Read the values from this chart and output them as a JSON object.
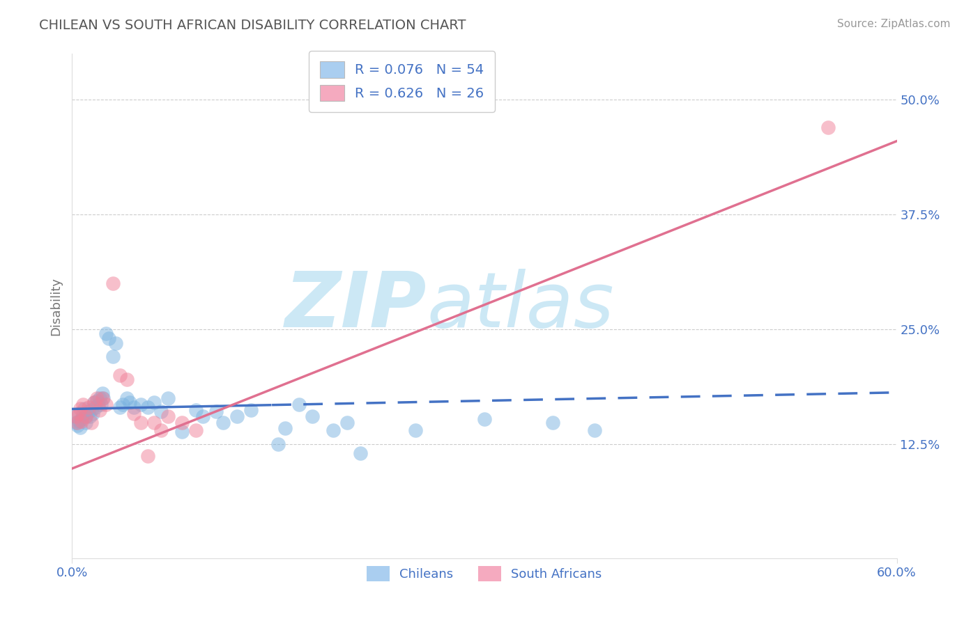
{
  "title": "CHILEAN VS SOUTH AFRICAN DISABILITY CORRELATION CHART",
  "source_text": "Source: ZipAtlas.com",
  "ylabel": "Disability",
  "x_min": 0.0,
  "x_max": 0.6,
  "y_min": 0.0,
  "y_max": 0.55,
  "x_tick_labels": [
    "0.0%",
    "60.0%"
  ],
  "right_y_ticks": [
    0.125,
    0.25,
    0.375,
    0.5
  ],
  "right_y_tick_labels": [
    "12.5%",
    "25.0%",
    "37.5%",
    "50.0%"
  ],
  "legend_entries": [
    {
      "label": "R = 0.076   N = 54",
      "color": "#aacef0"
    },
    {
      "label": "R = 0.626   N = 26",
      "color": "#f5aabf"
    }
  ],
  "legend_bottom": [
    "Chileans",
    "South Africans"
  ],
  "legend_bottom_colors": [
    "#aacef0",
    "#f5aabf"
  ],
  "chilean_color": "#7ab3e0",
  "sa_color": "#f08098",
  "chilean_line_color": "#4472c4",
  "sa_line_color": "#e07090",
  "watermark_color": "#cce8f5",
  "title_color": "#555555",
  "axis_label_color": "#777777",
  "tick_color": "#4472c4",
  "grid_color": "#cccccc",
  "chilean_scatter_x": [
    0.002,
    0.003,
    0.004,
    0.005,
    0.006,
    0.007,
    0.008,
    0.009,
    0.01,
    0.01,
    0.012,
    0.013,
    0.014,
    0.015,
    0.016,
    0.017,
    0.018,
    0.019,
    0.02,
    0.021,
    0.022,
    0.023,
    0.025,
    0.027,
    0.03,
    0.032,
    0.035,
    0.037,
    0.04,
    0.042,
    0.045,
    0.05,
    0.055,
    0.06,
    0.065,
    0.07,
    0.08,
    0.09,
    0.095,
    0.105,
    0.11,
    0.12,
    0.13,
    0.15,
    0.155,
    0.165,
    0.175,
    0.19,
    0.2,
    0.21,
    0.25,
    0.3,
    0.35,
    0.38
  ],
  "chilean_scatter_y": [
    0.155,
    0.148,
    0.145,
    0.15,
    0.143,
    0.152,
    0.158,
    0.163,
    0.155,
    0.148,
    0.16,
    0.155,
    0.162,
    0.158,
    0.17,
    0.165,
    0.172,
    0.168,
    0.175,
    0.168,
    0.18,
    0.175,
    0.245,
    0.24,
    0.22,
    0.235,
    0.165,
    0.168,
    0.175,
    0.17,
    0.165,
    0.168,
    0.165,
    0.17,
    0.16,
    0.175,
    0.138,
    0.162,
    0.155,
    0.16,
    0.148,
    0.155,
    0.162,
    0.125,
    0.142,
    0.168,
    0.155,
    0.14,
    0.148,
    0.115,
    0.14,
    0.152,
    0.148,
    0.14
  ],
  "sa_scatter_x": [
    0.003,
    0.004,
    0.005,
    0.006,
    0.007,
    0.008,
    0.01,
    0.012,
    0.014,
    0.016,
    0.018,
    0.02,
    0.022,
    0.025,
    0.03,
    0.035,
    0.04,
    0.045,
    0.05,
    0.055,
    0.06,
    0.065,
    0.07,
    0.08,
    0.09,
    0.55
  ],
  "sa_scatter_y": [
    0.155,
    0.148,
    0.158,
    0.163,
    0.15,
    0.168,
    0.155,
    0.165,
    0.148,
    0.17,
    0.175,
    0.162,
    0.175,
    0.168,
    0.3,
    0.2,
    0.195,
    0.158,
    0.148,
    0.112,
    0.148,
    0.14,
    0.155,
    0.148,
    0.14,
    0.47
  ],
  "chilean_line": {
    "x0": 0.0,
    "y0": 0.163,
    "x1": 0.6,
    "y1": 0.181
  },
  "sa_line": {
    "x0": 0.0,
    "y0": 0.098,
    "x1": 0.6,
    "y1": 0.455
  },
  "chilean_line_solid_end": 0.145,
  "fig_bg_color": "#ffffff"
}
